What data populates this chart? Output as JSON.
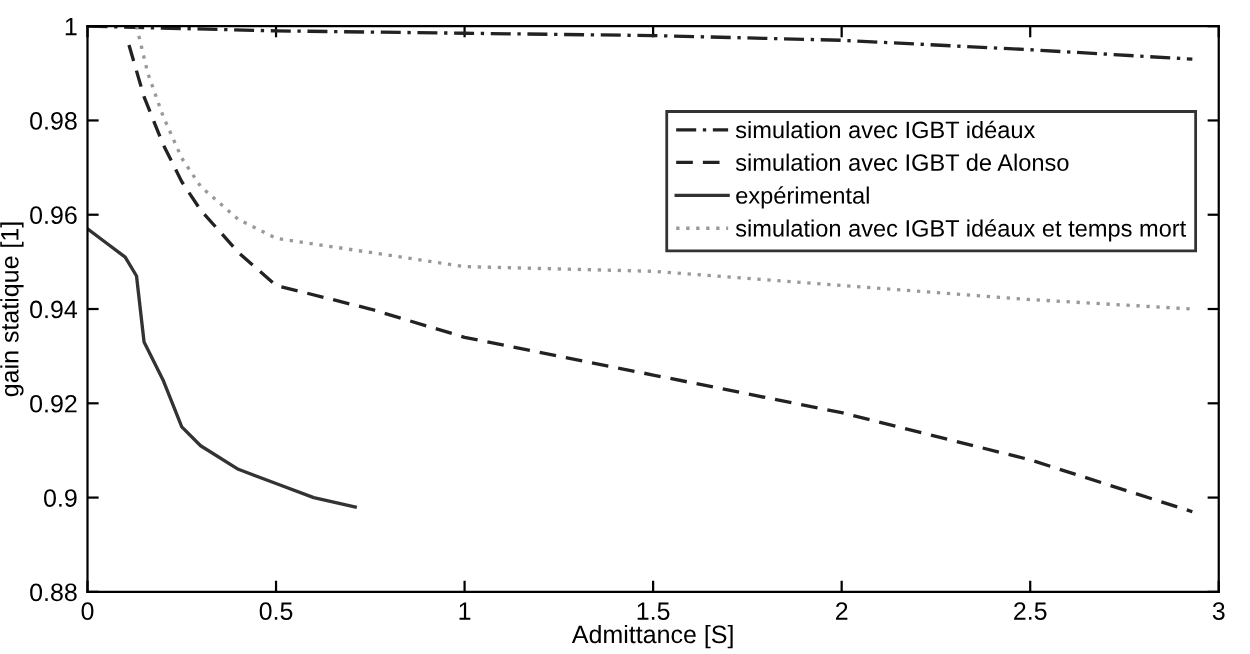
{
  "chart_data": {
    "type": "line",
    "xlabel": "Admittance [S]",
    "ylabel": "gain statique [1]",
    "xlim": [
      0,
      3
    ],
    "ylim": [
      0.88,
      1
    ],
    "xticks": [
      0,
      0.5,
      1,
      1.5,
      2,
      2.5,
      3
    ],
    "yticks": [
      0.88,
      0.9,
      0.92,
      0.94,
      0.96,
      0.98,
      1
    ],
    "grid": false,
    "legend": "top right",
    "series": [
      {
        "name": "simulation avec IGBT idéaux",
        "color": "#222222",
        "line_style": "dashdot",
        "x": [
          0,
          0.5,
          1,
          1.5,
          2,
          2.5,
          2.93
        ],
        "values": [
          1.0,
          0.999,
          0.9985,
          0.998,
          0.997,
          0.995,
          0.993
        ]
      },
      {
        "name": "simulation avec IGBT de Alonso",
        "color": "#222222",
        "line_style": "dashed",
        "x": [
          0.11,
          0.15,
          0.2,
          0.25,
          0.3,
          0.4,
          0.5,
          0.75,
          1,
          1.5,
          2,
          2.5,
          2.93
        ],
        "values": [
          0.996,
          0.985,
          0.975,
          0.967,
          0.961,
          0.952,
          0.945,
          0.94,
          0.934,
          0.926,
          0.918,
          0.908,
          0.897
        ]
      },
      {
        "name": "expérimental",
        "color": "#333333",
        "line_style": "solid",
        "x": [
          0,
          0.05,
          0.1,
          0.13,
          0.15,
          0.2,
          0.25,
          0.3,
          0.4,
          0.5,
          0.6,
          0.71
        ],
        "values": [
          0.957,
          0.954,
          0.951,
          0.947,
          0.933,
          0.925,
          0.915,
          0.911,
          0.906,
          0.903,
          0.9,
          0.898
        ]
      },
      {
        "name": "simulation avec IGBT idéaux et temps mort",
        "color": "#999999",
        "line_style": "dotted",
        "x": [
          0.13,
          0.16,
          0.2,
          0.25,
          0.3,
          0.4,
          0.5,
          0.75,
          1,
          1.5,
          2,
          2.5,
          2.93
        ],
        "values": [
          1.0,
          0.99,
          0.981,
          0.972,
          0.966,
          0.959,
          0.955,
          0.952,
          0.949,
          0.948,
          0.945,
          0.942,
          0.94
        ]
      }
    ]
  }
}
